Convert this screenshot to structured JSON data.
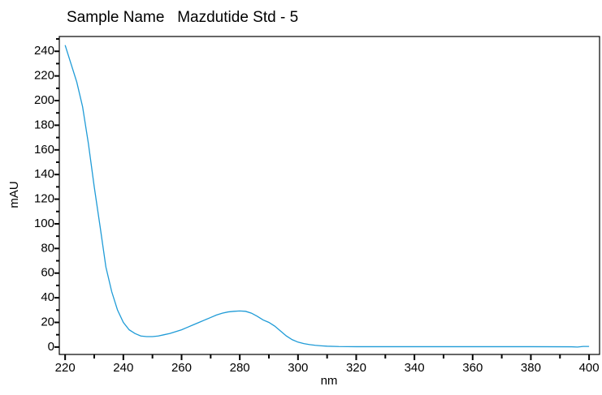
{
  "chart_data": {
    "type": "line",
    "title": "Sample Name   Mazdutide Std - 5",
    "x_label": "nm",
    "y_label": "mAU",
    "x": [
      220,
      222,
      224,
      226,
      228,
      230,
      232,
      234,
      236,
      238,
      240,
      242,
      244,
      246,
      248,
      250,
      252,
      254,
      256,
      258,
      260,
      262,
      264,
      266,
      268,
      270,
      272,
      274,
      276,
      278,
      280,
      282,
      284,
      286,
      288,
      290,
      292,
      294,
      296,
      298,
      300,
      302,
      304,
      306,
      308,
      310,
      314,
      320,
      340,
      360,
      380,
      394,
      396,
      398,
      400
    ],
    "values": [
      245,
      230,
      215,
      195,
      165,
      130,
      98,
      65,
      45,
      30,
      20,
      14,
      11,
      9,
      8.5,
      8.5,
      9,
      10,
      11,
      12.5,
      14,
      16,
      18,
      20,
      22,
      24,
      26,
      27.5,
      28.5,
      29,
      29.3,
      29,
      27.5,
      25,
      22,
      20,
      17,
      13,
      9,
      6,
      4,
      2.8,
      2,
      1.4,
      1,
      0.7,
      0.4,
      0.3,
      0.3,
      0.3,
      0.3,
      0.2,
      0,
      0.5,
      0.5
    ],
    "color": "#1f9bd7",
    "xlim": [
      218,
      403.6
    ],
    "ylim": [
      -6,
      252
    ],
    "xticks": [
      220,
      240,
      260,
      280,
      300,
      320,
      340,
      360,
      380,
      400
    ],
    "xminorticks": [
      230,
      250,
      270,
      290,
      310,
      330,
      350,
      370,
      390
    ],
    "yticks": [
      0,
      20,
      40,
      60,
      80,
      100,
      120,
      140,
      160,
      180,
      200,
      220,
      240
    ],
    "yminorticks": [
      10,
      30,
      50,
      70,
      90,
      110,
      130,
      150,
      170,
      190,
      210,
      230,
      250
    ]
  }
}
